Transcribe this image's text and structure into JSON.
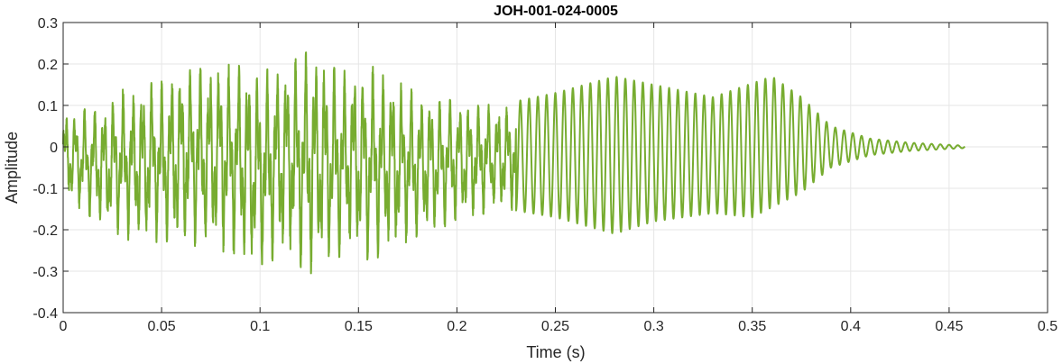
{
  "chart_data": {
    "type": "line",
    "title": "JOH-001-024-0005",
    "xlabel": "Time (s)",
    "ylabel": "Amplitude",
    "xlim": [
      0,
      0.5
    ],
    "ylim": [
      -0.4,
      0.3
    ],
    "grid": true,
    "xticks": [
      0,
      0.05,
      0.1,
      0.15,
      0.2,
      0.25,
      0.3,
      0.35,
      0.4,
      0.45,
      0.5
    ],
    "xtick_labels": [
      "0",
      "0.05",
      "0.1",
      "0.15",
      "0.2",
      "0.25",
      "0.3",
      "0.35",
      "0.4",
      "0.45",
      "0.5"
    ],
    "yticks": [
      -0.4,
      -0.3,
      -0.2,
      -0.1,
      0,
      0.1,
      0.2,
      0.3
    ],
    "ytick_labels": [
      "-0.4",
      "-0.3",
      "-0.2",
      "-0.1",
      "0",
      "0.1",
      "0.2",
      "0.3"
    ],
    "series": [
      {
        "color": "#77ac30",
        "duration": 0.458,
        "envelope_max": [
          {
            "t": 0.0,
            "v": 0.08
          },
          {
            "t": 0.02,
            "v": 0.1
          },
          {
            "t": 0.03,
            "v": 0.14
          },
          {
            "t": 0.05,
            "v": 0.16
          },
          {
            "t": 0.062,
            "v": 0.2
          },
          {
            "t": 0.09,
            "v": 0.2
          },
          {
            "t": 0.1,
            "v": 0.18
          },
          {
            "t": 0.121,
            "v": 0.22
          },
          {
            "t": 0.127,
            "v": 0.24
          },
          {
            "t": 0.14,
            "v": 0.18
          },
          {
            "t": 0.155,
            "v": 0.2
          },
          {
            "t": 0.18,
            "v": 0.13
          },
          {
            "t": 0.2,
            "v": 0.11
          },
          {
            "t": 0.22,
            "v": 0.1
          },
          {
            "t": 0.25,
            "v": 0.13
          },
          {
            "t": 0.28,
            "v": 0.17
          },
          {
            "t": 0.3,
            "v": 0.15
          },
          {
            "t": 0.33,
            "v": 0.12
          },
          {
            "t": 0.36,
            "v": 0.17
          },
          {
            "t": 0.375,
            "v": 0.12
          },
          {
            "t": 0.39,
            "v": 0.05
          },
          {
            "t": 0.41,
            "v": 0.02
          },
          {
            "t": 0.43,
            "v": 0.01
          },
          {
            "t": 0.458,
            "v": 0.003
          }
        ],
        "envelope_min": [
          {
            "t": 0.0,
            "v": -0.12
          },
          {
            "t": 0.02,
            "v": -0.19
          },
          {
            "t": 0.035,
            "v": -0.23
          },
          {
            "t": 0.05,
            "v": -0.23
          },
          {
            "t": 0.08,
            "v": -0.25
          },
          {
            "t": 0.097,
            "v": -0.29
          },
          {
            "t": 0.115,
            "v": -0.26
          },
          {
            "t": 0.122,
            "v": -0.3
          },
          {
            "t": 0.127,
            "v": -0.31
          },
          {
            "t": 0.145,
            "v": -0.25
          },
          {
            "t": 0.155,
            "v": -0.28
          },
          {
            "t": 0.17,
            "v": -0.24
          },
          {
            "t": 0.2,
            "v": -0.18
          },
          {
            "t": 0.225,
            "v": -0.15
          },
          {
            "t": 0.25,
            "v": -0.17
          },
          {
            "t": 0.28,
            "v": -0.21
          },
          {
            "t": 0.3,
            "v": -0.18
          },
          {
            "t": 0.33,
            "v": -0.16
          },
          {
            "t": 0.35,
            "v": -0.17
          },
          {
            "t": 0.375,
            "v": -0.11
          },
          {
            "t": 0.39,
            "v": -0.05
          },
          {
            "t": 0.41,
            "v": -0.02
          },
          {
            "t": 0.43,
            "v": -0.01
          },
          {
            "t": 0.458,
            "v": -0.003
          }
        ]
      }
    ]
  }
}
